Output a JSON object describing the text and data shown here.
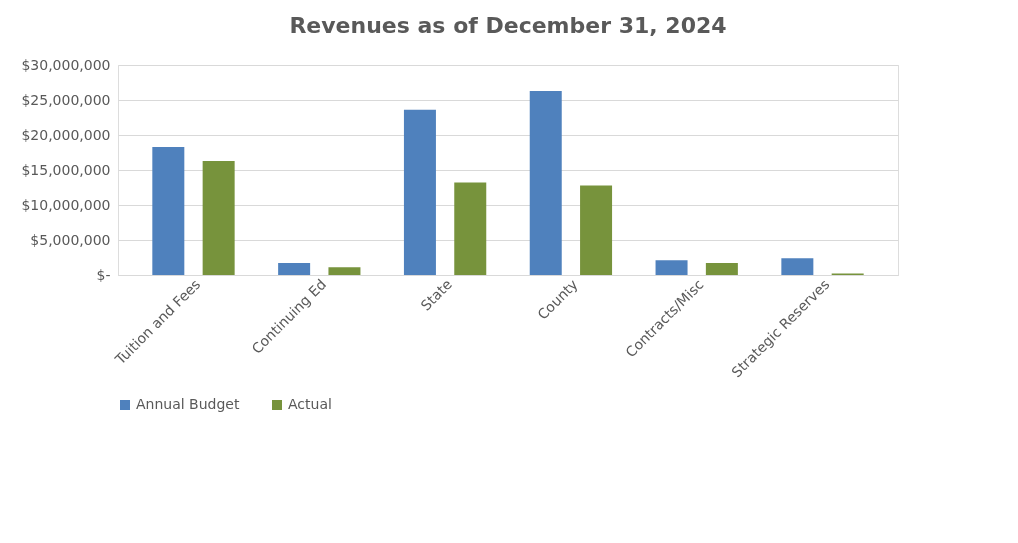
{
  "chart_data": {
    "type": "bar",
    "title": "Revenues as of December 31, 2024",
    "categories": [
      "Tuition and Fees",
      "Continuing Ed",
      "State",
      "County",
      "Contracts/Misc",
      "Strategic Reserves"
    ],
    "series": [
      {
        "name": "Annual Budget",
        "color": "#4f81bd",
        "values": [
          18300000,
          1700000,
          23600000,
          26300000,
          2100000,
          2400000
        ]
      },
      {
        "name": "Actual",
        "color": "#77933c",
        "values": [
          16300000,
          1100000,
          13200000,
          12800000,
          1700000,
          200000
        ]
      }
    ],
    "ylim": [
      0,
      30000000
    ],
    "yticks": [
      {
        "value": 0,
        "label": "$-"
      },
      {
        "value": 5000000,
        "label": "$5,000,000"
      },
      {
        "value": 10000000,
        "label": "$10,000,000"
      },
      {
        "value": 15000000,
        "label": "$15,000,000"
      },
      {
        "value": 20000000,
        "label": "$20,000,000"
      },
      {
        "value": 25000000,
        "label": "$25,000,000"
      },
      {
        "value": 30000000,
        "label": "$30,000,000"
      }
    ],
    "grid": "y",
    "legend": "bottom"
  }
}
